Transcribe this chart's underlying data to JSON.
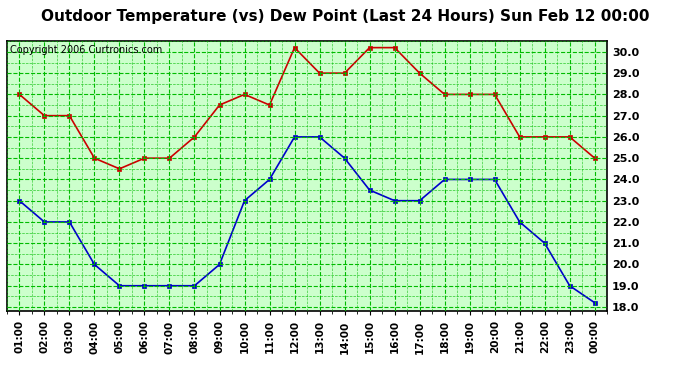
{
  "title": "Outdoor Temperature (vs) Dew Point (Last 24 Hours) Sun Feb 12 00:00",
  "copyright": "Copyright 2006 Curtronics.com",
  "x_labels": [
    "01:00",
    "02:00",
    "03:00",
    "04:00",
    "05:00",
    "06:00",
    "07:00",
    "08:00",
    "09:00",
    "10:00",
    "11:00",
    "12:00",
    "13:00",
    "14:00",
    "15:00",
    "16:00",
    "17:00",
    "18:00",
    "19:00",
    "20:00",
    "21:00",
    "22:00",
    "23:00",
    "00:00"
  ],
  "temp_values": [
    28.0,
    27.0,
    27.0,
    25.0,
    24.5,
    25.0,
    25.0,
    26.0,
    27.5,
    28.0,
    27.5,
    30.2,
    29.0,
    29.0,
    30.2,
    30.2,
    29.0,
    28.0,
    28.0,
    28.0,
    26.0,
    26.0,
    26.0,
    25.0
  ],
  "dew_values": [
    23.0,
    22.0,
    22.0,
    20.0,
    19.0,
    19.0,
    19.0,
    19.0,
    20.0,
    23.0,
    24.0,
    26.0,
    26.0,
    25.0,
    23.5,
    23.0,
    23.0,
    24.0,
    24.0,
    24.0,
    22.0,
    21.0,
    19.0,
    18.2
  ],
  "temp_color": "#cc0000",
  "dew_color": "#0000cc",
  "bg_color": "#ffffff",
  "plot_bg_color": "#ccffcc",
  "grid_color": "#00bb00",
  "title_fontsize": 11,
  "copyright_fontsize": 7,
  "ylim": [
    17.8,
    30.5
  ],
  "marker": "s",
  "markersize": 3,
  "linewidth": 1.2
}
